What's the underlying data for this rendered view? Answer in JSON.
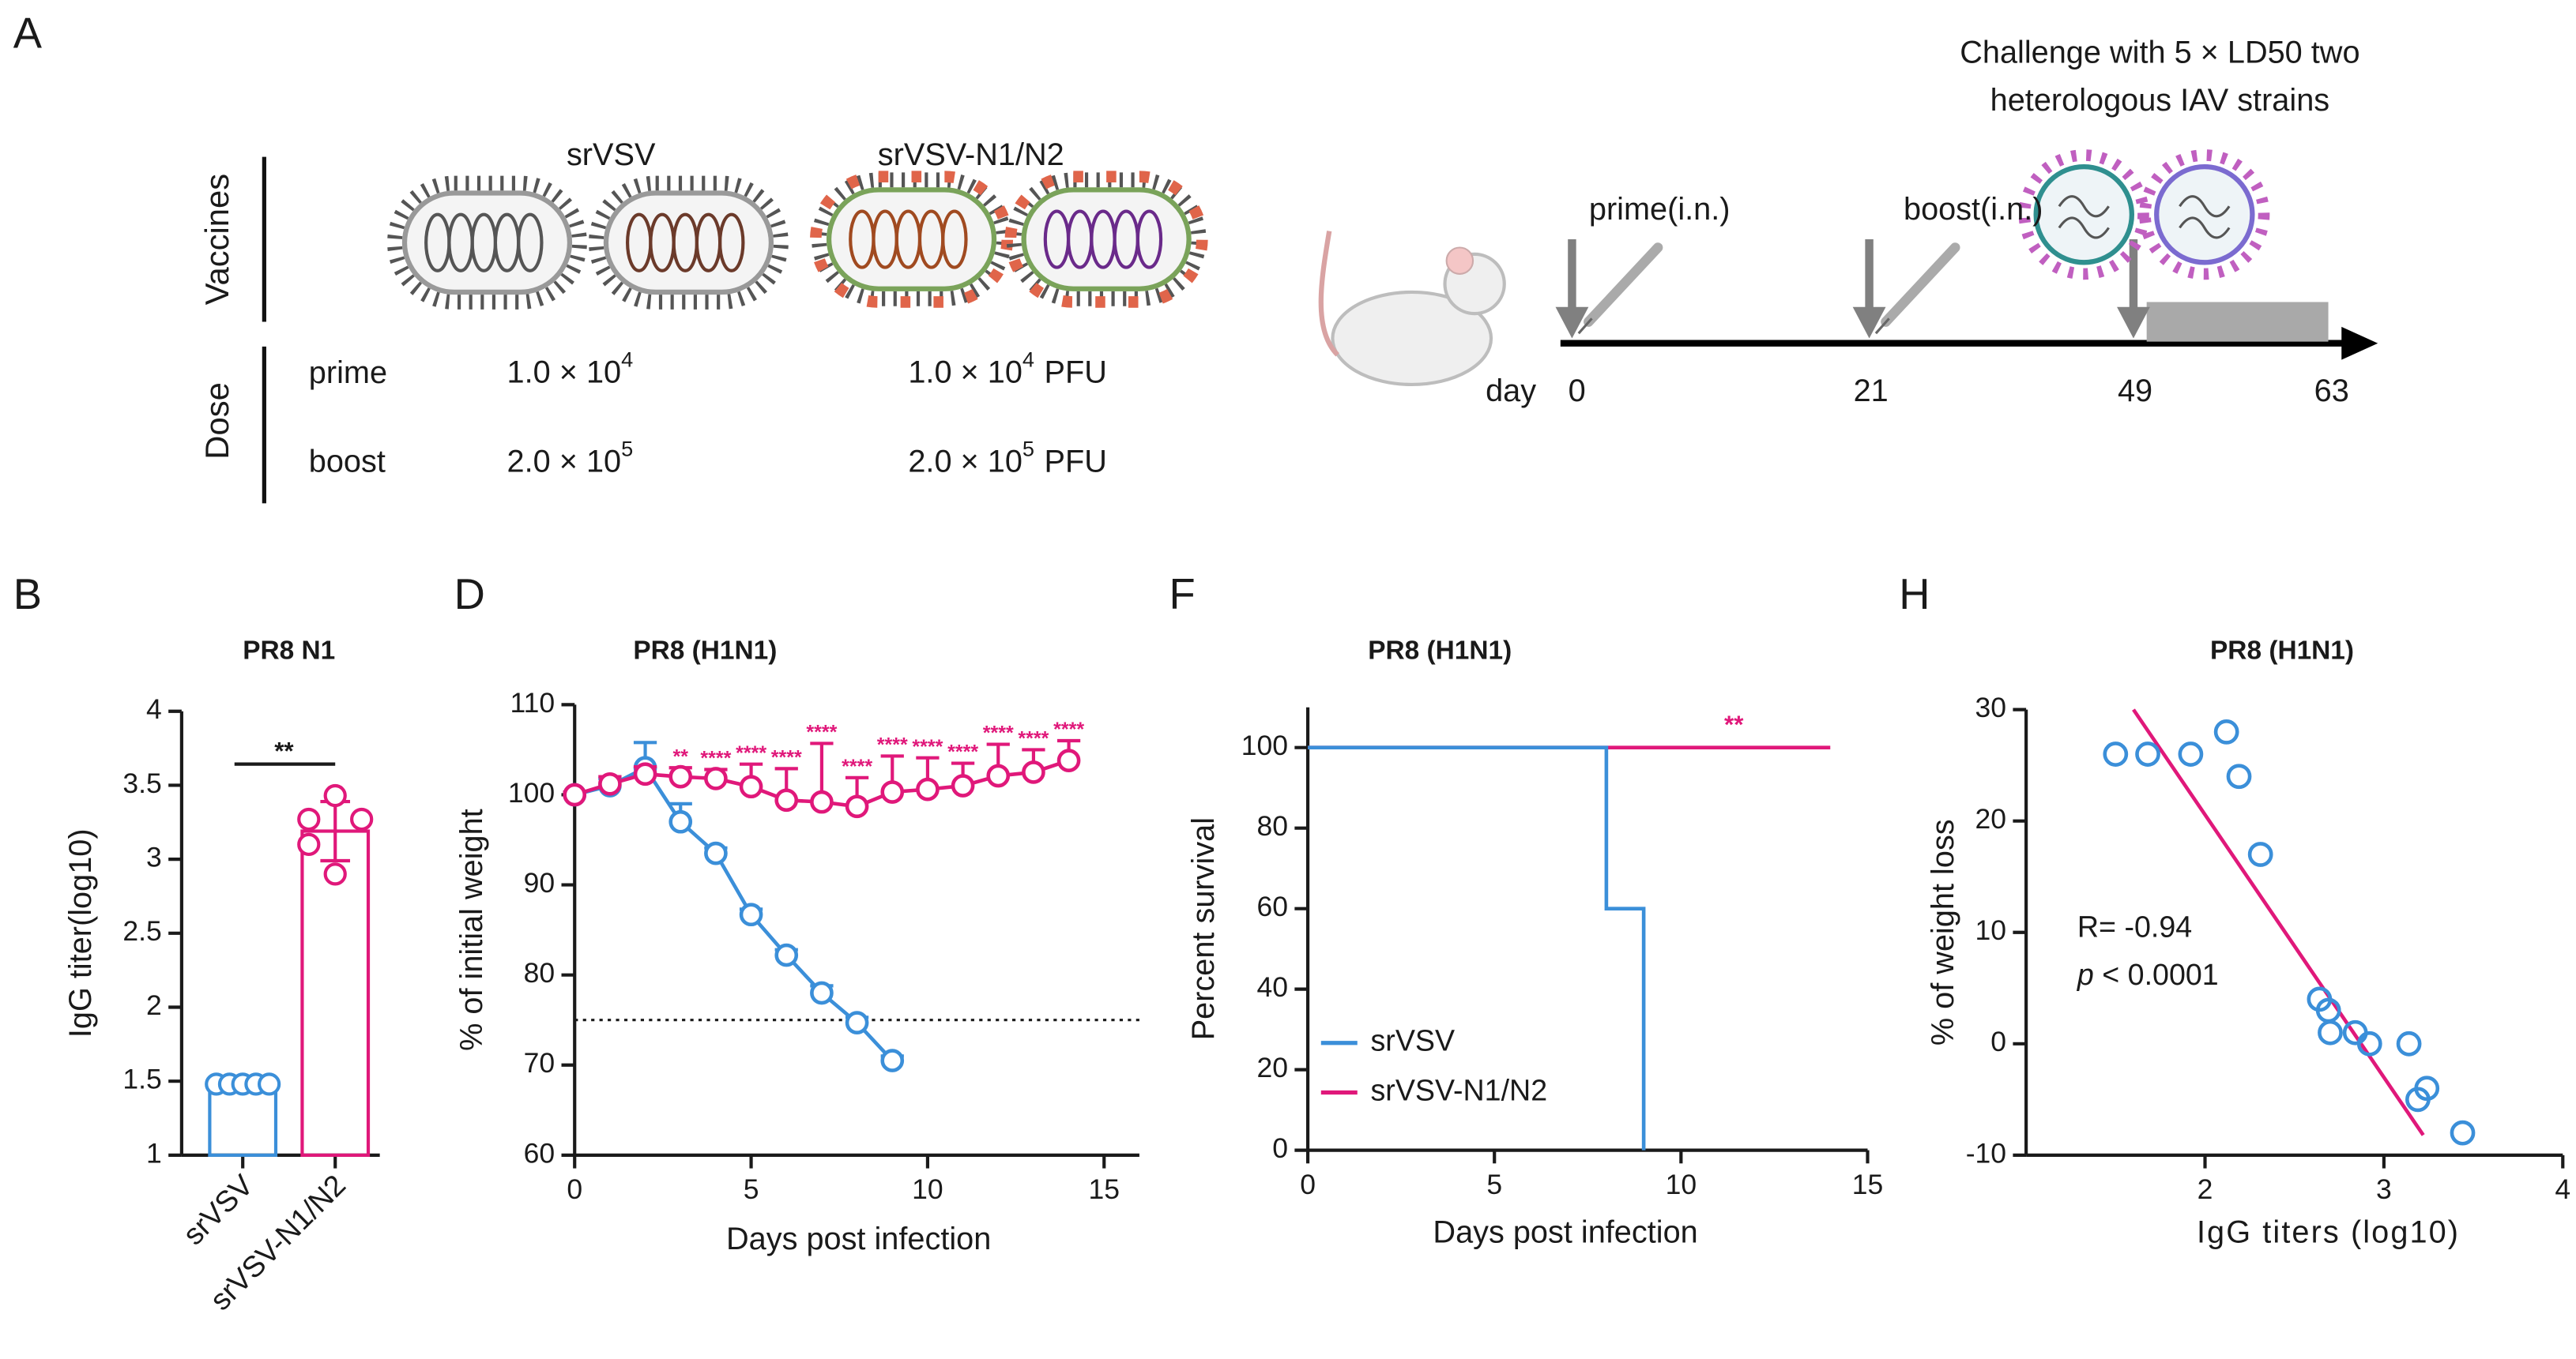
{
  "panel_a": {
    "label": "A",
    "vaccines_label": "Vaccines",
    "dose_label": "Dose",
    "vaccines": [
      "srVSV",
      "srVSV-N1/N2"
    ],
    "doses": [
      {
        "name": "prime",
        "cells": [
          {
            "base": "1.0 × 10",
            "exp": "4"
          },
          {
            "base": "1.0 × 10",
            "exp": "4",
            "unit": "PFU"
          }
        ]
      },
      {
        "name": "boost",
        "cells": [
          {
            "base": "2.0 × 10",
            "exp": "5"
          },
          {
            "base": "2.0 × 10",
            "exp": "5",
            "unit": "PFU"
          }
        ]
      }
    ],
    "timeline": {
      "steps": [
        "prime(i.n.)",
        "boost(i.n.)"
      ],
      "day_label": "day",
      "days": [
        "0",
        "21",
        "49",
        "63"
      ],
      "challenge": [
        "Challenge with 5 × LD50 two",
        "heterologous IAV strains"
      ]
    }
  },
  "chart_data": [
    {
      "type": "bar",
      "panel": "B",
      "title": "PR8 N1",
      "ylabel": "IgG titer(log10)",
      "categories": [
        "srVSV",
        "srVSV-N1/N2"
      ],
      "values": [
        1.48,
        3.19
      ],
      "errors": [
        0.03,
        0.2
      ],
      "points": [
        [
          1.48,
          1.48,
          1.48,
          1.48,
          1.48
        ],
        [
          3.43,
          3.27,
          3.27,
          3.1,
          2.9
        ]
      ],
      "colors": [
        "#3b8fd9",
        "#e0187a"
      ],
      "ylim": [
        1,
        4
      ],
      "yticks": [
        1,
        1.5,
        2,
        2.5,
        3,
        3.5,
        4
      ],
      "significance": "**"
    },
    {
      "type": "line",
      "panel": "D",
      "title": "PR8 (H1N1)",
      "xlabel": "Days post infection",
      "ylabel": "% of initial weight",
      "x": [
        0,
        1,
        2,
        3,
        4,
        5,
        6,
        7,
        8,
        9,
        10,
        11,
        12,
        13,
        14
      ],
      "series": [
        {
          "name": "srVSV",
          "color": "#3b8fd9",
          "values": [
            100,
            101,
            103,
            97,
            93.5,
            86.7,
            82.2,
            78,
            74.7,
            70.5,
            null,
            null,
            null,
            null,
            null
          ],
          "errors": [
            0.3,
            0.8,
            2.8,
            2,
            0.6,
            0.6,
            0.6,
            0.8,
            0.6,
            0.5,
            null,
            null,
            null,
            null,
            null
          ]
        },
        {
          "name": "srVSV-N1/N2",
          "color": "#e0187a",
          "values": [
            100,
            101.2,
            102.3,
            102,
            101.8,
            100.9,
            99.4,
            99.2,
            98.7,
            100.3,
            100.6,
            101,
            102.1,
            102.5,
            103.8
          ],
          "errors": [
            0.3,
            0.8,
            0.8,
            1,
            1,
            2.5,
            3.5,
            6.5,
            3.2,
            4,
            3.5,
            2.5,
            3.5,
            2.5,
            2.2
          ],
          "significance": [
            null,
            null,
            null,
            "**",
            "****",
            "****",
            "****",
            "****",
            "****",
            "****",
            "****",
            "****",
            "****",
            "****",
            "****"
          ]
        }
      ],
      "threshold": 75,
      "xlim": [
        0,
        16
      ],
      "xticks": [
        0,
        5,
        10,
        15
      ],
      "ylim": [
        60,
        110
      ],
      "yticks": [
        60,
        70,
        80,
        90,
        100,
        110
      ]
    },
    {
      "type": "step",
      "panel": "F",
      "title": "PR8 (H1N1)",
      "xlabel": "Days post infection",
      "ylabel": "Percent survival",
      "series": [
        {
          "name": "srVSV",
          "color": "#3b8fd9",
          "x": [
            0,
            8,
            9
          ],
          "values": [
            100,
            60,
            0
          ]
        },
        {
          "name": "srVSV-N1/N2",
          "color": "#e0187a",
          "x": [
            0,
            14
          ],
          "values": [
            100,
            100
          ]
        }
      ],
      "significance": "**",
      "legend": "lower-left",
      "xlim": [
        0,
        15
      ],
      "xticks": [
        0,
        5,
        10,
        15
      ],
      "ylim": [
        0,
        110
      ],
      "yticks": [
        0,
        20,
        40,
        60,
        80,
        100
      ]
    },
    {
      "type": "scatter",
      "panel": "H",
      "title": "PR8 (H1N1)",
      "xlabel": "IgG titers (log10)",
      "ylabel": "% of weight loss",
      "color": "#3b8fd9",
      "x": [
        1.5,
        1.68,
        1.92,
        2.12,
        2.19,
        2.31,
        2.64,
        2.69,
        2.7,
        2.84,
        2.92,
        3.14,
        3.24,
        3.19,
        3.44
      ],
      "values": [
        26,
        26,
        26,
        28,
        24,
        17,
        4,
        3,
        1,
        1,
        0,
        0,
        -4,
        -5,
        -8
      ],
      "fit": {
        "color": "#e0187a",
        "x": [
          1.6,
          3.22
        ],
        "values": [
          30,
          -8.2
        ]
      },
      "r_label": "R= -0.94",
      "p_label": [
        "p",
        " < 0.0001"
      ],
      "xlim": [
        1,
        4
      ],
      "xticks": [
        2,
        3,
        4
      ],
      "ylim": [
        -10,
        30
      ],
      "yticks": [
        -10,
        0,
        10,
        20,
        30
      ]
    }
  ]
}
